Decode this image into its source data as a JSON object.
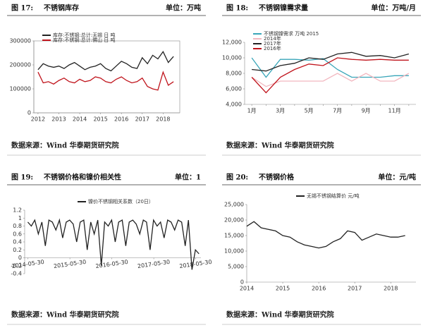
{
  "chart_data": [
    {
      "type": "line",
      "figure_label": "图 17:",
      "title": "不锈钢库存",
      "unit": "单位：万吨",
      "source": "数据来源：Wind 华泰期货研究院",
      "x": [
        2012,
        2012.25,
        2012.5,
        2012.75,
        2013,
        2013.25,
        2013.5,
        2013.75,
        2014,
        2014.25,
        2014.5,
        2014.75,
        2015,
        2015.25,
        2015.5,
        2015.75,
        2016,
        2016.25,
        2016.5,
        2016.75,
        2017,
        2017.25,
        2017.5,
        2017.75,
        2018,
        2018.25,
        2018.5
      ],
      "series": [
        {
          "name": "库存:不锈钢:总计:无锡 日 吨",
          "color": "#222222",
          "values": [
            180000,
            205000,
            195000,
            190000,
            195000,
            185000,
            200000,
            210000,
            195000,
            180000,
            190000,
            195000,
            205000,
            185000,
            175000,
            195000,
            215000,
            205000,
            190000,
            185000,
            230000,
            205000,
            240000,
            225000,
            255000,
            210000,
            235000
          ]
        },
        {
          "name": "库存:不锈钢:总计:佛山 日 吨",
          "color": "#c0141c",
          "values": [
            170000,
            125000,
            130000,
            120000,
            135000,
            145000,
            130000,
            125000,
            140000,
            130000,
            135000,
            150000,
            145000,
            130000,
            125000,
            140000,
            150000,
            135000,
            125000,
            130000,
            145000,
            110000,
            100000,
            95000,
            170000,
            115000,
            130000
          ]
        }
      ],
      "xlim": [
        2011.8,
        2018.8
      ],
      "xticks": [
        2012,
        2013,
        2014,
        2015,
        2016,
        2017,
        2018
      ],
      "ylim": [
        0,
        300000
      ],
      "yticks": [
        0,
        100000,
        200000,
        300000
      ],
      "legend": "upper left"
    },
    {
      "type": "line",
      "figure_label": "图 18:",
      "title": "不锈钢镍需求量",
      "unit": "单位：万吨/月",
      "source": "数据来源：Wind 华泰期货研究院",
      "categories": [
        "1月",
        null,
        "3月",
        null,
        "5月",
        null,
        "7月",
        null,
        "9月",
        null,
        "11月",
        null
      ],
      "series": [
        {
          "name": "不锈钢镍需求 万吨 2015",
          "color": "#3aa6b9",
          "values": [
            10000,
            7500,
            9800,
            9800,
            9700,
            9900,
            8500,
            7500,
            7500,
            7500,
            7700,
            7700
          ]
        },
        {
          "name": "2014年",
          "color": "#f2b8c0",
          "values": [
            7500,
            6300,
            7000,
            7000,
            7000,
            7000,
            8000,
            7000,
            8000,
            7000,
            7000,
            8000
          ]
        },
        {
          "name": "2017年",
          "color": "#222222",
          "values": [
            8500,
            8300,
            9000,
            9300,
            10000,
            9800,
            10500,
            10700,
            10200,
            10300,
            10000,
            10500
          ]
        },
        {
          "name": "2016年",
          "color": "#c0141c",
          "values": [
            7500,
            5500,
            7500,
            8500,
            9200,
            9000,
            10000,
            9800,
            9700,
            9800,
            9700,
            9700
          ]
        }
      ],
      "ylim": [
        4000,
        12000
      ],
      "yticks": [
        {
          "value": 4000,
          "label": "4,000"
        },
        {
          "value": 6000,
          "label": "6,000"
        },
        {
          "value": 8000,
          "label": "8,000"
        },
        {
          "value": 10000,
          "label": "10,000"
        },
        {
          "value": 12000,
          "label": "12,000"
        }
      ],
      "legend": "upper left"
    },
    {
      "type": "line",
      "figure_label": "图 19:",
      "title": "不锈钢价格和镍价相关性",
      "unit": "单位：1",
      "source": "数据来源：Wind 华泰期货研究院",
      "x": [
        "2014-05-28",
        "2014-06-28",
        "2014-07-28",
        "2014-08-28",
        "2014-09-28",
        "2014-10-28",
        "2014-11-28",
        "2014-12-28",
        "2015-01-28",
        "2015-02-28",
        "2015-03-28",
        "2015-04-28",
        "2015-05-28",
        "2015-06-28",
        "2015-07-28",
        "2015-08-28",
        "2015-09-28",
        "2015-10-28",
        "2015-11-28",
        "2015-12-28",
        "2016-01-28",
        "2016-02-28",
        "2016-03-28",
        "2016-04-28",
        "2016-05-28",
        "2016-06-28",
        "2016-07-28",
        "2016-08-28",
        "2016-09-28",
        "2016-10-28",
        "2016-11-28",
        "2016-12-28",
        "2017-01-28",
        "2017-02-28",
        "2017-03-28",
        "2017-04-28",
        "2017-05-28",
        "2017-06-28",
        "2017-07-28",
        "2017-08-28",
        "2017-09-28",
        "2017-10-28",
        "2017-11-28",
        "2017-12-28",
        "2018-01-28",
        "2018-02-28",
        "2018-03-28",
        "2018-04-28",
        "2018-05-28",
        "2018-06-28"
      ],
      "series": [
        {
          "name": "镍价不锈钢相关系数（20日）",
          "color": "#222222",
          "values": [
            0.9,
            0.8,
            0.95,
            0.6,
            0.9,
            0.3,
            0.95,
            0.9,
            0.7,
            0.95,
            0.5,
            0.9,
            0.95,
            0.85,
            0.4,
            0.9,
            0.95,
            0.2,
            0.9,
            0.6,
            0.95,
            -0.2,
            0.9,
            0.8,
            0.95,
            0.4,
            0.9,
            0.95,
            0.3,
            0.9,
            0.95,
            0.85,
            0.6,
            0.95,
            0.9,
            0.2,
            0.95,
            0.8,
            0.9,
            0.5,
            0.95,
            0.9,
            0.7,
            0.95,
            0.9,
            0.3,
            0.95,
            -0.3,
            0.2,
            0.1
          ]
        }
      ],
      "xlim": [
        "2014-05-01",
        "2018-07-15"
      ],
      "xticks": [
        "2014-05-30",
        "2015-05-30",
        "2016-05-30",
        "2017-05-30",
        "2018-05-30"
      ],
      "ylim": [
        -0.4,
        1.2
      ],
      "yticks": [
        -0.4,
        -0.2,
        0,
        0.2,
        0.4,
        0.6,
        0.8,
        1,
        1.2
      ],
      "legend": "upper center"
    },
    {
      "type": "line",
      "figure_label": "图 20:",
      "title": "不锈钢价格",
      "unit": "单位：元/吨",
      "source": "数据来源：Wind 华泰期货研究院",
      "x": [
        2014,
        2014.2,
        2014.4,
        2014.6,
        2014.8,
        2015,
        2015.2,
        2015.4,
        2015.6,
        2015.8,
        2016,
        2016.2,
        2016.4,
        2016.6,
        2016.8,
        2017,
        2017.2,
        2017.4,
        2017.6,
        2017.8,
        2018,
        2018.2,
        2018.4
      ],
      "series": [
        {
          "name": "无锡不锈钢结算价 元/吨",
          "color": "#222222",
          "values": [
            18000,
            19500,
            17500,
            17000,
            16500,
            15000,
            14500,
            13000,
            12000,
            11500,
            11000,
            11500,
            13000,
            14000,
            16500,
            16000,
            13500,
            14500,
            15500,
            15000,
            14500,
            14500,
            15000
          ]
        }
      ],
      "xlim": [
        2014,
        2018.7
      ],
      "xticks": [
        2014,
        2015,
        2016,
        2017,
        2018
      ],
      "ylim": [
        0,
        25000
      ],
      "yticks": [
        0,
        {
          "value": 5000,
          "label": "5,000"
        },
        {
          "value": 10000,
          "label": "10,000"
        },
        {
          "value": 15000,
          "label": "15,000"
        },
        {
          "value": 20000,
          "label": "20,000"
        },
        {
          "value": 25000,
          "label": "25,000"
        }
      ],
      "legend": "upper center"
    }
  ]
}
